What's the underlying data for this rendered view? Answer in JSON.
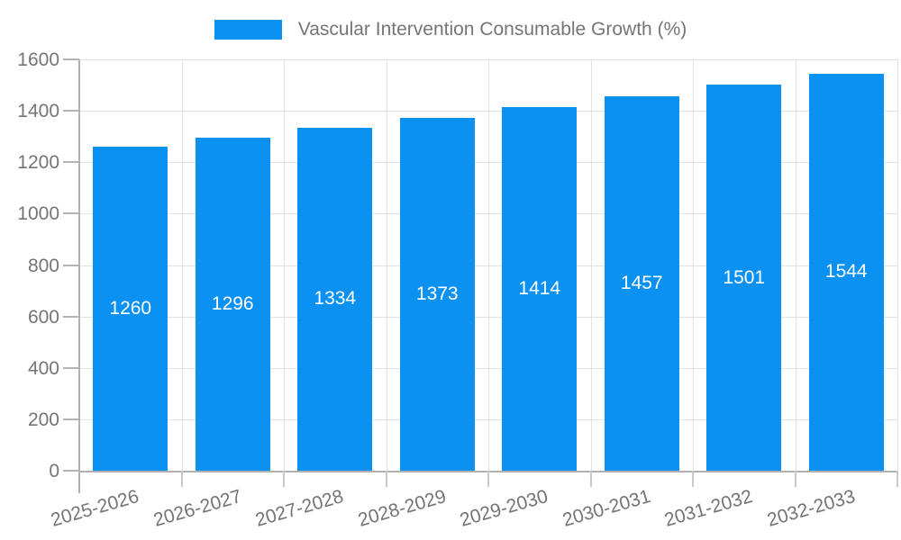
{
  "legend": {
    "label": "Vascular Intervention Consumable Growth (%)"
  },
  "chart_data": {
    "type": "bar",
    "title": "Vascular Intervention Consumable Growth (%)",
    "categories": [
      "2025-2026",
      "2026-2027",
      "2027-2028",
      "2028-2029",
      "2029-2030",
      "2030-2031",
      "2031-2032",
      "2032-2033"
    ],
    "values": [
      1260,
      1296,
      1334,
      1373,
      1414,
      1457,
      1501,
      1544
    ],
    "xlabel": "",
    "ylabel": "",
    "ylim": [
      0,
      1600
    ],
    "yticks": [
      0,
      200,
      400,
      600,
      800,
      1000,
      1200,
      1400,
      1600
    ],
    "grid": true,
    "legend_position": "top-center",
    "value_labels": "inside-middle",
    "x_tick_rotation_deg": -16,
    "colors": {
      "bar": "#0a91f2",
      "bar_label": "#ffffff",
      "axis_text": "#757575",
      "grid_line": "#e2e2e2",
      "axis_line": "#b0b0b0",
      "background": "#ffffff"
    }
  }
}
